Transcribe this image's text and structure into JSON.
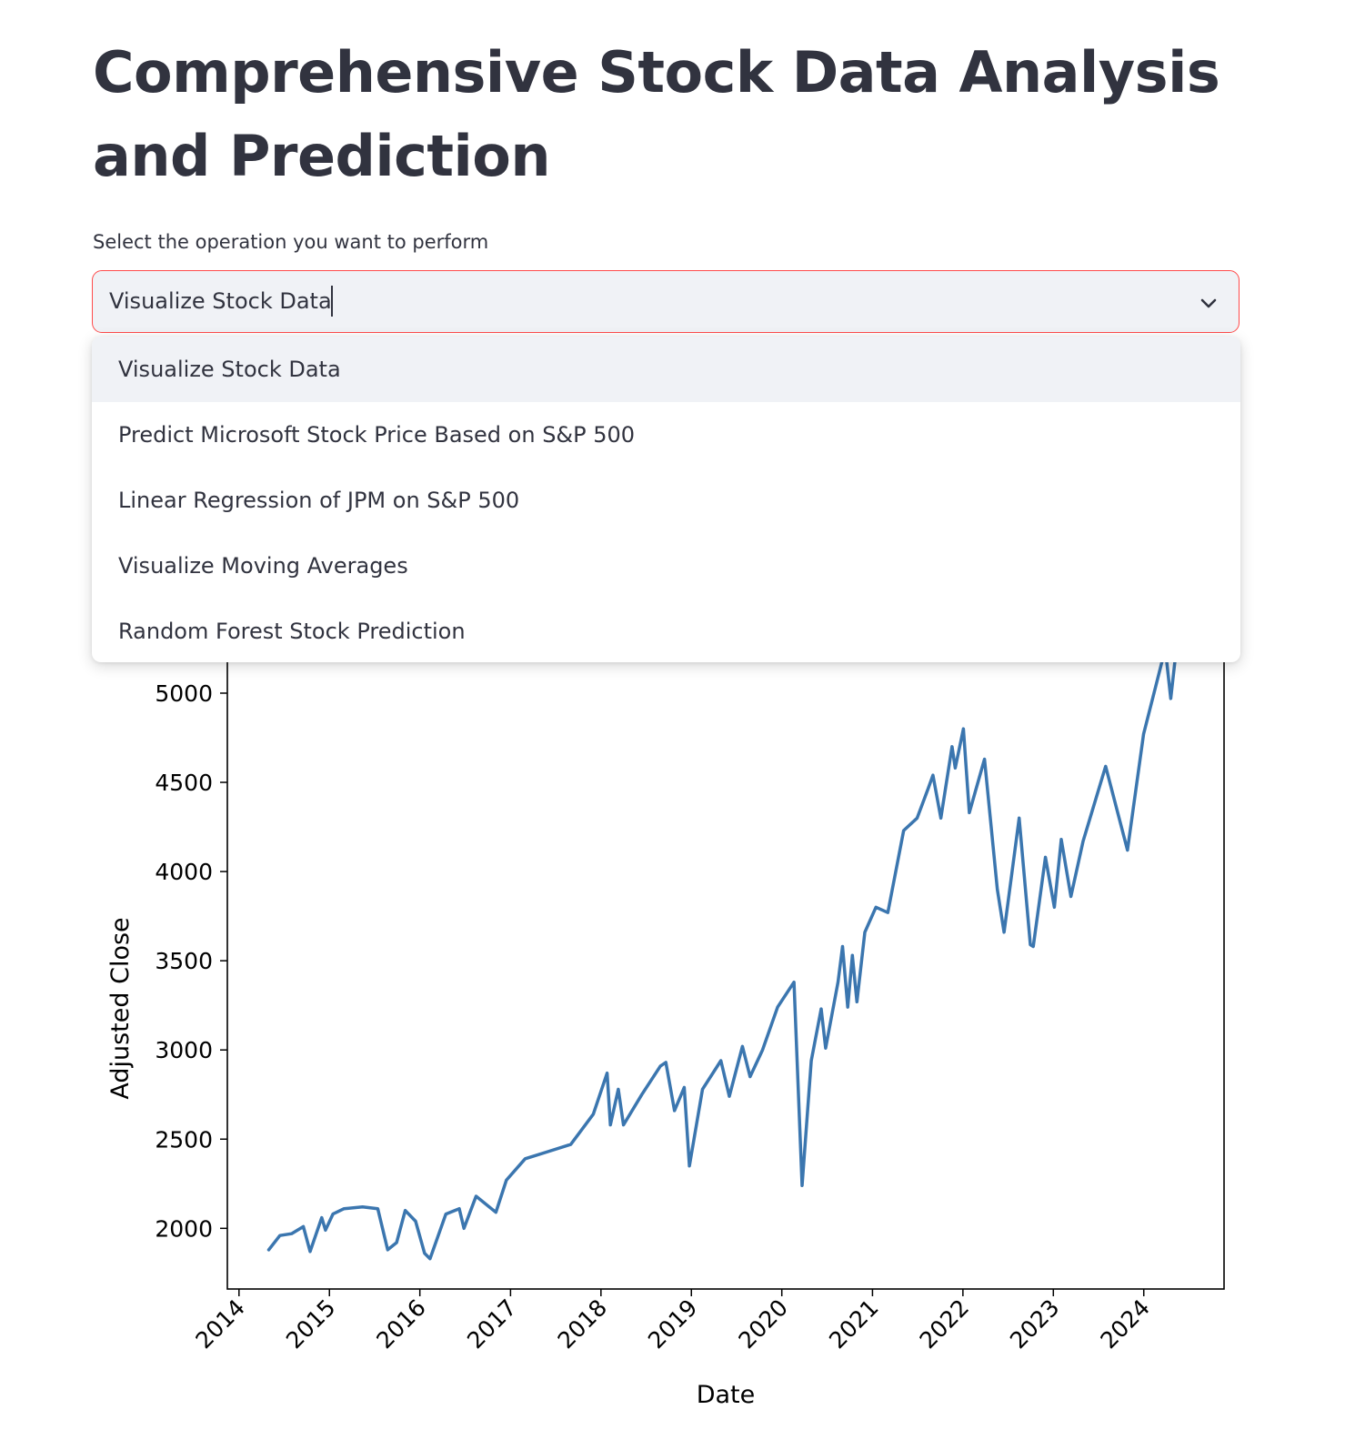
{
  "page": {
    "title": "Comprehensive Stock Data Analysis and Prediction"
  },
  "select": {
    "label": "Select the operation you want to perform",
    "value": "Visualize Stock Data",
    "chevron_icon": "chevron-down-icon",
    "options": [
      "Visualize Stock Data",
      "Predict Microsoft Stock Price Based on S&P 500",
      "Linear Regression of JPM on S&P 500",
      "Visualize Moving Averages",
      "Random Forest Stock Prediction"
    ]
  },
  "chart_data": {
    "type": "line",
    "xlabel": "Date",
    "ylabel": "Adjusted Close",
    "xlim": [
      "2013-11-15",
      "2024-11-20"
    ],
    "ylim": [
      1660,
      5520
    ],
    "x_ticks": [
      "2014",
      "2015",
      "2016",
      "2017",
      "2018",
      "2019",
      "2020",
      "2021",
      "2022",
      "2023",
      "2024"
    ],
    "y_ticks": [
      2000,
      2500,
      3000,
      3500,
      4000,
      4500,
      5000
    ],
    "line_color": "#3b76af",
    "series": [
      {
        "x": [
          "2014-05-01",
          "2014-06-15",
          "2014-08-01",
          "2014-09-18",
          "2014-10-15",
          "2014-12-01",
          "2014-12-16",
          "2015-01-15",
          "2015-03-01",
          "2015-05-15",
          "2015-07-15",
          "2015-08-24",
          "2015-09-29",
          "2015-11-03",
          "2015-12-15",
          "2016-01-20",
          "2016-02-11",
          "2016-04-15",
          "2016-06-08",
          "2016-06-27",
          "2016-08-15",
          "2016-11-03",
          "2016-12-15",
          "2017-03-01",
          "2017-06-01",
          "2017-09-01",
          "2017-12-01",
          "2018-01-26",
          "2018-02-08",
          "2018-03-12",
          "2018-04-02",
          "2018-06-15",
          "2018-08-29",
          "2018-09-20",
          "2018-10-25",
          "2018-12-03",
          "2018-12-24",
          "2019-02-15",
          "2019-04-30",
          "2019-06-03",
          "2019-07-26",
          "2019-08-26",
          "2019-10-15",
          "2019-12-15",
          "2020-02-19",
          "2020-03-23",
          "2020-04-29",
          "2020-06-08",
          "2020-06-26",
          "2020-08-15",
          "2020-09-02",
          "2020-09-23",
          "2020-10-12",
          "2020-10-30",
          "2020-12-01",
          "2021-01-15",
          "2021-03-04",
          "2021-05-07",
          "2021-06-30",
          "2021-08-15",
          "2021-09-02",
          "2021-10-04",
          "2021-11-18",
          "2021-12-01",
          "2022-01-03",
          "2022-01-27",
          "2022-03-29",
          "2022-05-20",
          "2022-06-16",
          "2022-08-16",
          "2022-09-30",
          "2022-10-12",
          "2022-11-30",
          "2023-01-05",
          "2023-02-02",
          "2023-03-13",
          "2023-05-01",
          "2023-07-31",
          "2023-10-27",
          "2023-12-31",
          "2024-03-28",
          "2024-04-19",
          "2024-05-10"
        ],
        "y": [
          1880,
          1960,
          1970,
          2010,
          1870,
          2060,
          1990,
          2080,
          2110,
          2120,
          2110,
          1880,
          1920,
          2100,
          2040,
          1860,
          1830,
          2080,
          2110,
          2000,
          2180,
          2090,
          2270,
          2390,
          2430,
          2470,
          2640,
          2870,
          2580,
          2780,
          2580,
          2750,
          2910,
          2930,
          2660,
          2790,
          2350,
          2780,
          2940,
          2740,
          3020,
          2850,
          3000,
          3240,
          3380,
          2240,
          2940,
          3230,
          3010,
          3380,
          3580,
          3240,
          3530,
          3270,
          3660,
          3800,
          3770,
          4230,
          4300,
          4470,
          4540,
          4300,
          4700,
          4580,
          4800,
          4330,
          4630,
          3900,
          3660,
          4300,
          3590,
          3580,
          4080,
          3800,
          4180,
          3860,
          4170,
          4590,
          4120,
          4770,
          5250,
          4970,
          5230
        ]
      }
    ]
  }
}
